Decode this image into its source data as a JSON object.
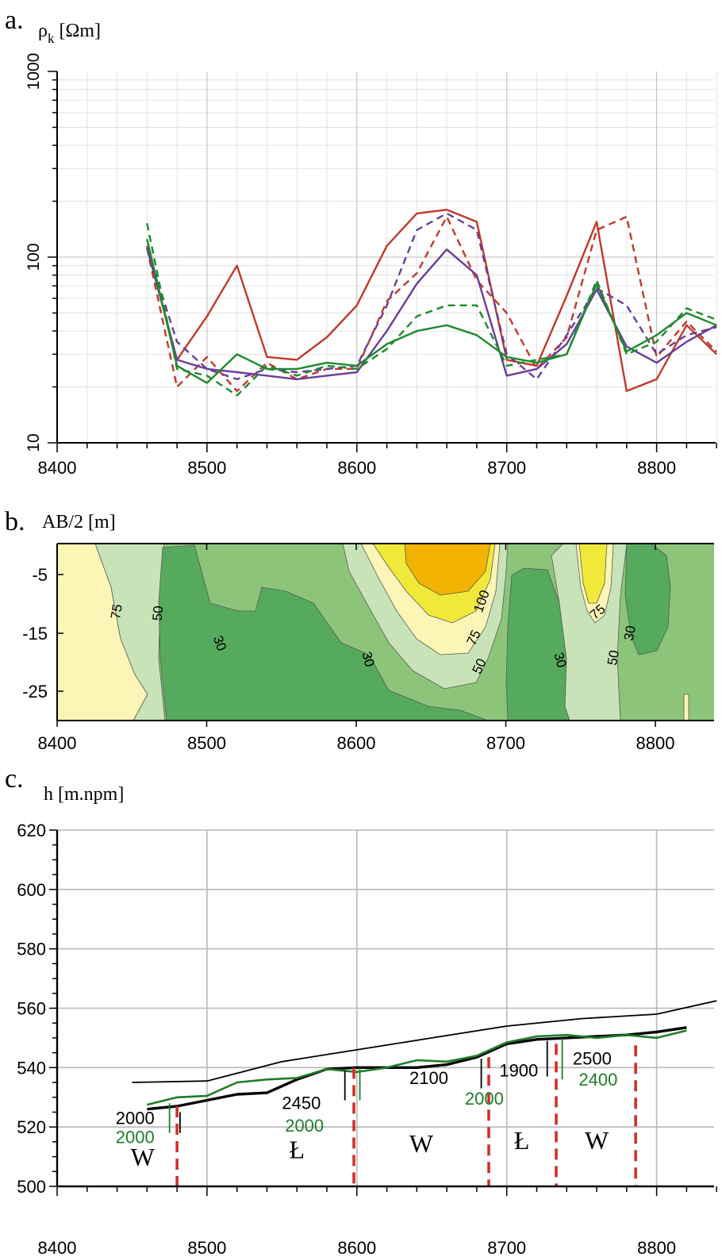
{
  "panels": {
    "a": {
      "letter": "a.",
      "ylabel_main": "ρ",
      "ylabel_sub": "k",
      "ylabel_unit": " [Ωm]"
    },
    "b": {
      "letter": "b.",
      "ylabel": "AB/2 [m]"
    },
    "c": {
      "letter": "c.",
      "ylabel": "h [m.npm]"
    }
  },
  "chart_data": [
    {
      "id": "a",
      "type": "line",
      "xlim": [
        8400,
        8840
      ],
      "ylim": [
        10,
        1000
      ],
      "yscale": "log",
      "xticks": [
        "8400",
        "8500",
        "8600",
        "8700",
        "8800"
      ],
      "yticks": [
        "10",
        "100",
        "1000"
      ],
      "grid": true,
      "series": [
        {
          "color": "#c0392b",
          "dash": false,
          "x": [
            8460,
            8480,
            8500,
            8520,
            8540,
            8560,
            8580,
            8600,
            8620,
            8640,
            8660,
            8680,
            8700,
            8720,
            8740,
            8760,
            8780,
            8800,
            8820,
            8840
          ],
          "y": [
            115,
            28,
            48,
            90,
            29,
            28,
            37,
            55,
            115,
            172,
            180,
            155,
            28,
            26,
            62,
            155,
            19,
            22,
            43,
            30
          ]
        },
        {
          "color": "#c0392b",
          "dash": true,
          "x": [
            8460,
            8480,
            8500,
            8520,
            8540,
            8560,
            8580,
            8600,
            8620,
            8640,
            8660,
            8680,
            8700,
            8720,
            8740,
            8760,
            8780,
            8800,
            8820,
            8840
          ],
          "y": [
            112,
            20,
            29,
            19,
            27,
            22,
            25,
            25,
            58,
            82,
            165,
            75,
            50,
            25,
            37,
            140,
            165,
            29,
            45,
            31
          ]
        },
        {
          "color": "#6a3d9a",
          "dash": false,
          "x": [
            8460,
            8480,
            8500,
            8520,
            8540,
            8560,
            8580,
            8600,
            8620,
            8640,
            8660,
            8680,
            8700,
            8720,
            8740,
            8760,
            8780,
            8800,
            8820,
            8840
          ],
          "y": [
            112,
            28,
            25,
            24,
            23,
            22,
            23,
            24,
            40,
            72,
            110,
            80,
            23,
            25,
            34,
            67,
            33,
            27,
            35,
            43
          ]
        },
        {
          "color": "#6a3d9a",
          "dash": true,
          "x": [
            8460,
            8480,
            8500,
            8520,
            8540,
            8560,
            8580,
            8600,
            8620,
            8640,
            8660,
            8680,
            8700,
            8720,
            8740,
            8760,
            8780,
            8800,
            8820,
            8840
          ],
          "y": [
            112,
            35,
            25,
            22,
            25,
            24,
            25,
            26,
            55,
            140,
            172,
            140,
            30,
            22,
            38,
            68,
            55,
            30,
            38,
            42
          ]
        },
        {
          "color": "#1e8a2e",
          "dash": false,
          "x": [
            8460,
            8480,
            8500,
            8520,
            8540,
            8560,
            8580,
            8600,
            8620,
            8640,
            8660,
            8680,
            8700,
            8720,
            8740,
            8760,
            8780,
            8800,
            8820,
            8840
          ],
          "y": [
            125,
            26,
            21,
            30,
            25,
            25,
            27,
            26,
            34,
            40,
            43,
            38,
            29,
            27,
            30,
            72,
            31,
            38,
            50,
            43
          ]
        },
        {
          "color": "#1e8a2e",
          "dash": true,
          "x": [
            8460,
            8480,
            8500,
            8520,
            8540,
            8560,
            8580,
            8600,
            8620,
            8640,
            8660,
            8680,
            8700,
            8720,
            8740,
            8760,
            8780,
            8800,
            8820,
            8840
          ],
          "y": [
            152,
            25,
            23,
            18,
            26,
            23,
            26,
            25,
            32,
            48,
            55,
            55,
            26,
            28,
            30,
            75,
            30,
            35,
            53,
            46
          ]
        }
      ]
    },
    {
      "id": "b",
      "type": "heatmap",
      "xlim": [
        8400,
        8840
      ],
      "ylim": [
        -30,
        0
      ],
      "xticks": [
        "8400",
        "8500",
        "8600",
        "8700",
        "8800"
      ],
      "yticks": [
        "-5",
        "-15",
        "-25"
      ],
      "levels": [
        {
          "value": 30,
          "color": "#55aa5d"
        },
        {
          "value": 50,
          "color": "#8cc57a"
        },
        {
          "value": 75,
          "color": "#c9e3b8"
        },
        {
          "value": 100,
          "color": "#fbf6b6"
        },
        {
          "value": 150,
          "color": "#f1e93a"
        },
        {
          "value": 200,
          "color": "#f2b400"
        }
      ],
      "contour_labels": [
        "75",
        "50",
        "30",
        "30",
        "100",
        "75",
        "50",
        "30",
        "75",
        "50",
        "30"
      ]
    },
    {
      "id": "c",
      "type": "line",
      "xlim": [
        8400,
        8840
      ],
      "ylim": [
        500,
        620
      ],
      "xticks": [
        "8400",
        "8500",
        "8600",
        "8700",
        "8800"
      ],
      "yticks": [
        "500",
        "520",
        "540",
        "560",
        "580",
        "600",
        "620"
      ],
      "grid": true,
      "series": [
        {
          "color": "#000000",
          "width": "thin",
          "x": [
            8450,
            8500,
            8550,
            8600,
            8650,
            8700,
            8750,
            8800,
            8840
          ],
          "y": [
            535,
            535.5,
            542,
            546,
            550,
            554,
            556.5,
            558,
            562.5
          ]
        },
        {
          "color": "#000000",
          "width": "thick",
          "x": [
            8460,
            8480,
            8500,
            8520,
            8540,
            8560,
            8580,
            8600,
            8620,
            8640,
            8660,
            8680,
            8700,
            8720,
            8740,
            8760,
            8780,
            8800,
            8820
          ],
          "y": [
            526,
            527,
            529,
            531,
            531.5,
            536,
            539.5,
            540,
            540,
            540,
            541,
            543.5,
            548,
            549.5,
            550,
            550.5,
            551,
            552,
            553.5
          ]
        },
        {
          "color": "#1e7d2a",
          "width": "normal",
          "x": [
            8460,
            8480,
            8500,
            8520,
            8540,
            8560,
            8580,
            8600,
            8620,
            8640,
            8660,
            8680,
            8700,
            8720,
            8740,
            8760,
            8780,
            8800,
            8820
          ],
          "y": [
            527.5,
            530,
            530.5,
            535,
            536,
            536.5,
            539.5,
            538.5,
            540,
            542.5,
            542,
            544,
            548.5,
            550.5,
            551,
            550,
            551,
            550,
            552.5
          ]
        }
      ],
      "boundaries_x": [
        8480,
        8598,
        8688,
        8733,
        8786
      ],
      "labels": [
        {
          "text": "2000",
          "color": "#000000",
          "x": 8452,
          "y": 521
        },
        {
          "text": "2000",
          "color": "#1e7d2a",
          "x": 8452,
          "y": 514.5
        },
        {
          "text": "2450",
          "color": "#000000",
          "x": 8563,
          "y": 526
        },
        {
          "text": "2000",
          "color": "#1e7d2a",
          "x": 8565,
          "y": 518.5
        },
        {
          "text": "2100",
          "color": "#000000",
          "x": 8648,
          "y": 534.5
        },
        {
          "text": "2000",
          "color": "#1e7d2a",
          "x": 8685,
          "y": 527.5
        },
        {
          "text": "1900",
          "color": "#000000",
          "x": 8708,
          "y": 537
        },
        {
          "text": "2500",
          "color": "#000000",
          "x": 8757,
          "y": 541
        },
        {
          "text": "2400",
          "color": "#1e7d2a",
          "x": 8761,
          "y": 534
        }
      ],
      "zones": [
        {
          "text": "W",
          "x": 8457,
          "y": 507
        },
        {
          "text": "Ł",
          "x": 8560,
          "y": 509.5
        },
        {
          "text": "W",
          "x": 8643,
          "y": 511.5
        },
        {
          "text": "Ł",
          "x": 8710,
          "y": 512.5
        },
        {
          "text": "W",
          "x": 8760,
          "y": 512.5
        }
      ]
    }
  ]
}
